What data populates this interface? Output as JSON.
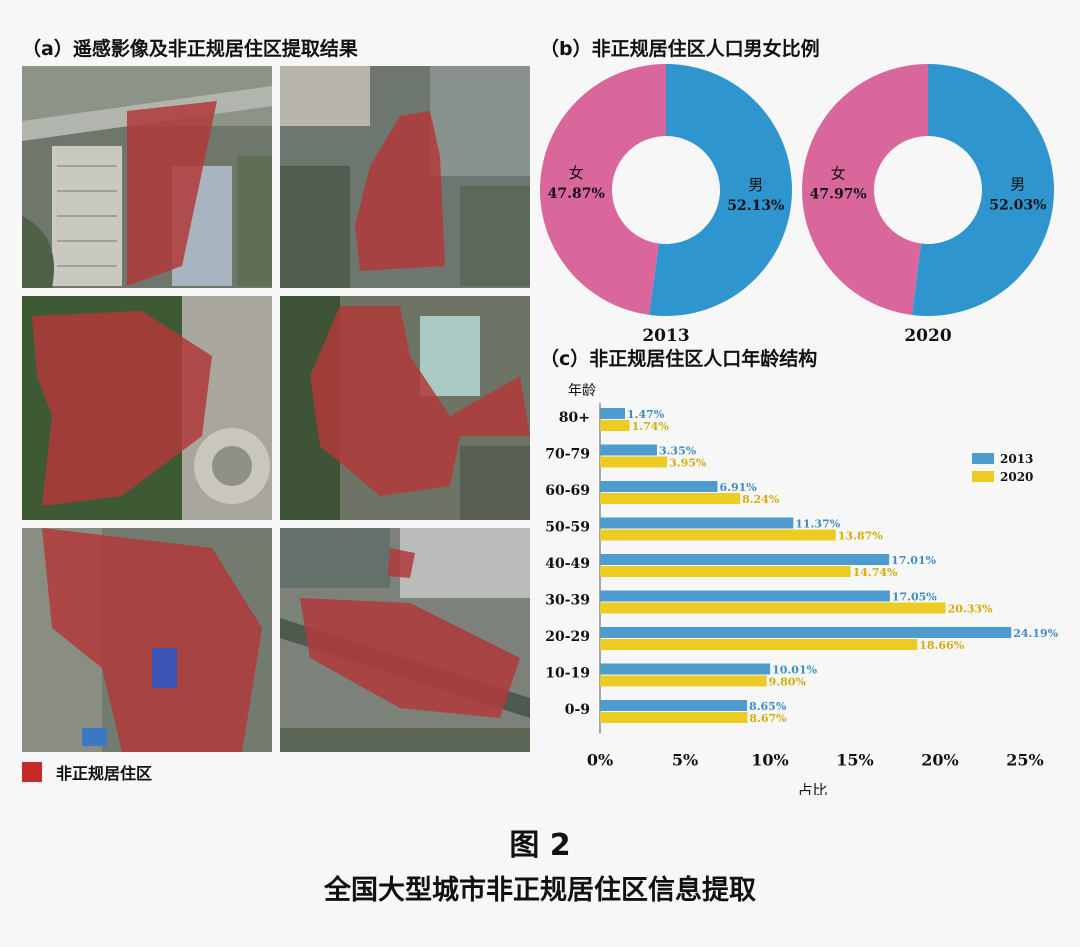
{
  "panel_a": {
    "title": "（a）遥感影像及非正规居住区提取结果",
    "legend_label": "非正规居住区",
    "legend_color": "#c32a2a"
  },
  "panel_b": {
    "title": "（b）非正规居住区人口男女比例"
  },
  "panel_c": {
    "title": "（c）非正规居住区人口年龄结构"
  },
  "caption": {
    "figure_number": "图 2",
    "figure_title": "全国大型城市非正规居住区信息提取"
  },
  "chart_data": [
    {
      "type": "pie",
      "donut": true,
      "label": "2013",
      "slices": [
        {
          "name": "男",
          "value": 52.13,
          "display": "52.13%",
          "color": "#2f95cf"
        },
        {
          "name": "女",
          "value": 47.87,
          "display": "47.87%",
          "color": "#d9679b"
        }
      ]
    },
    {
      "type": "pie",
      "donut": true,
      "label": "2020",
      "slices": [
        {
          "name": "男",
          "value": 52.03,
          "display": "52.03%",
          "color": "#2f95cf"
        },
        {
          "name": "女",
          "value": 47.97,
          "display": "47.97%",
          "color": "#d9679b"
        }
      ]
    },
    {
      "type": "bar",
      "orientation": "horizontal",
      "ylabel": "年龄",
      "xlabel": "占比",
      "categories": [
        "80+",
        "70-79",
        "60-69",
        "50-59",
        "40-49",
        "30-39",
        "20-29",
        "10-19",
        "0-9"
      ],
      "xlim": [
        0,
        25
      ],
      "x_ticks": [
        "0%",
        "5%",
        "10%",
        "15%",
        "20%",
        "25%"
      ],
      "legend_position": "right",
      "series": [
        {
          "name": "2013",
          "color": "#4d9ccd",
          "label_color": "#3f8dc4",
          "values": [
            1.47,
            3.35,
            6.91,
            11.37,
            17.01,
            17.05,
            24.19,
            10.01,
            8.65
          ],
          "labels": [
            "1.47%",
            "3.35%",
            "6.91%",
            "11.37%",
            "17.01%",
            "17.05%",
            "24.19%",
            "10.01%",
            "8.65%"
          ]
        },
        {
          "name": "2020",
          "color": "#eccc22",
          "label_color": "#d4ac10",
          "values": [
            1.74,
            3.95,
            8.24,
            13.87,
            14.74,
            20.33,
            18.66,
            9.8,
            8.67
          ],
          "labels": [
            "1.74%",
            "3.95%",
            "8.24%",
            "13.87%",
            "14.74%",
            "20.33%",
            "18.66%",
            "9.80%",
            "8.67%"
          ]
        }
      ]
    }
  ]
}
